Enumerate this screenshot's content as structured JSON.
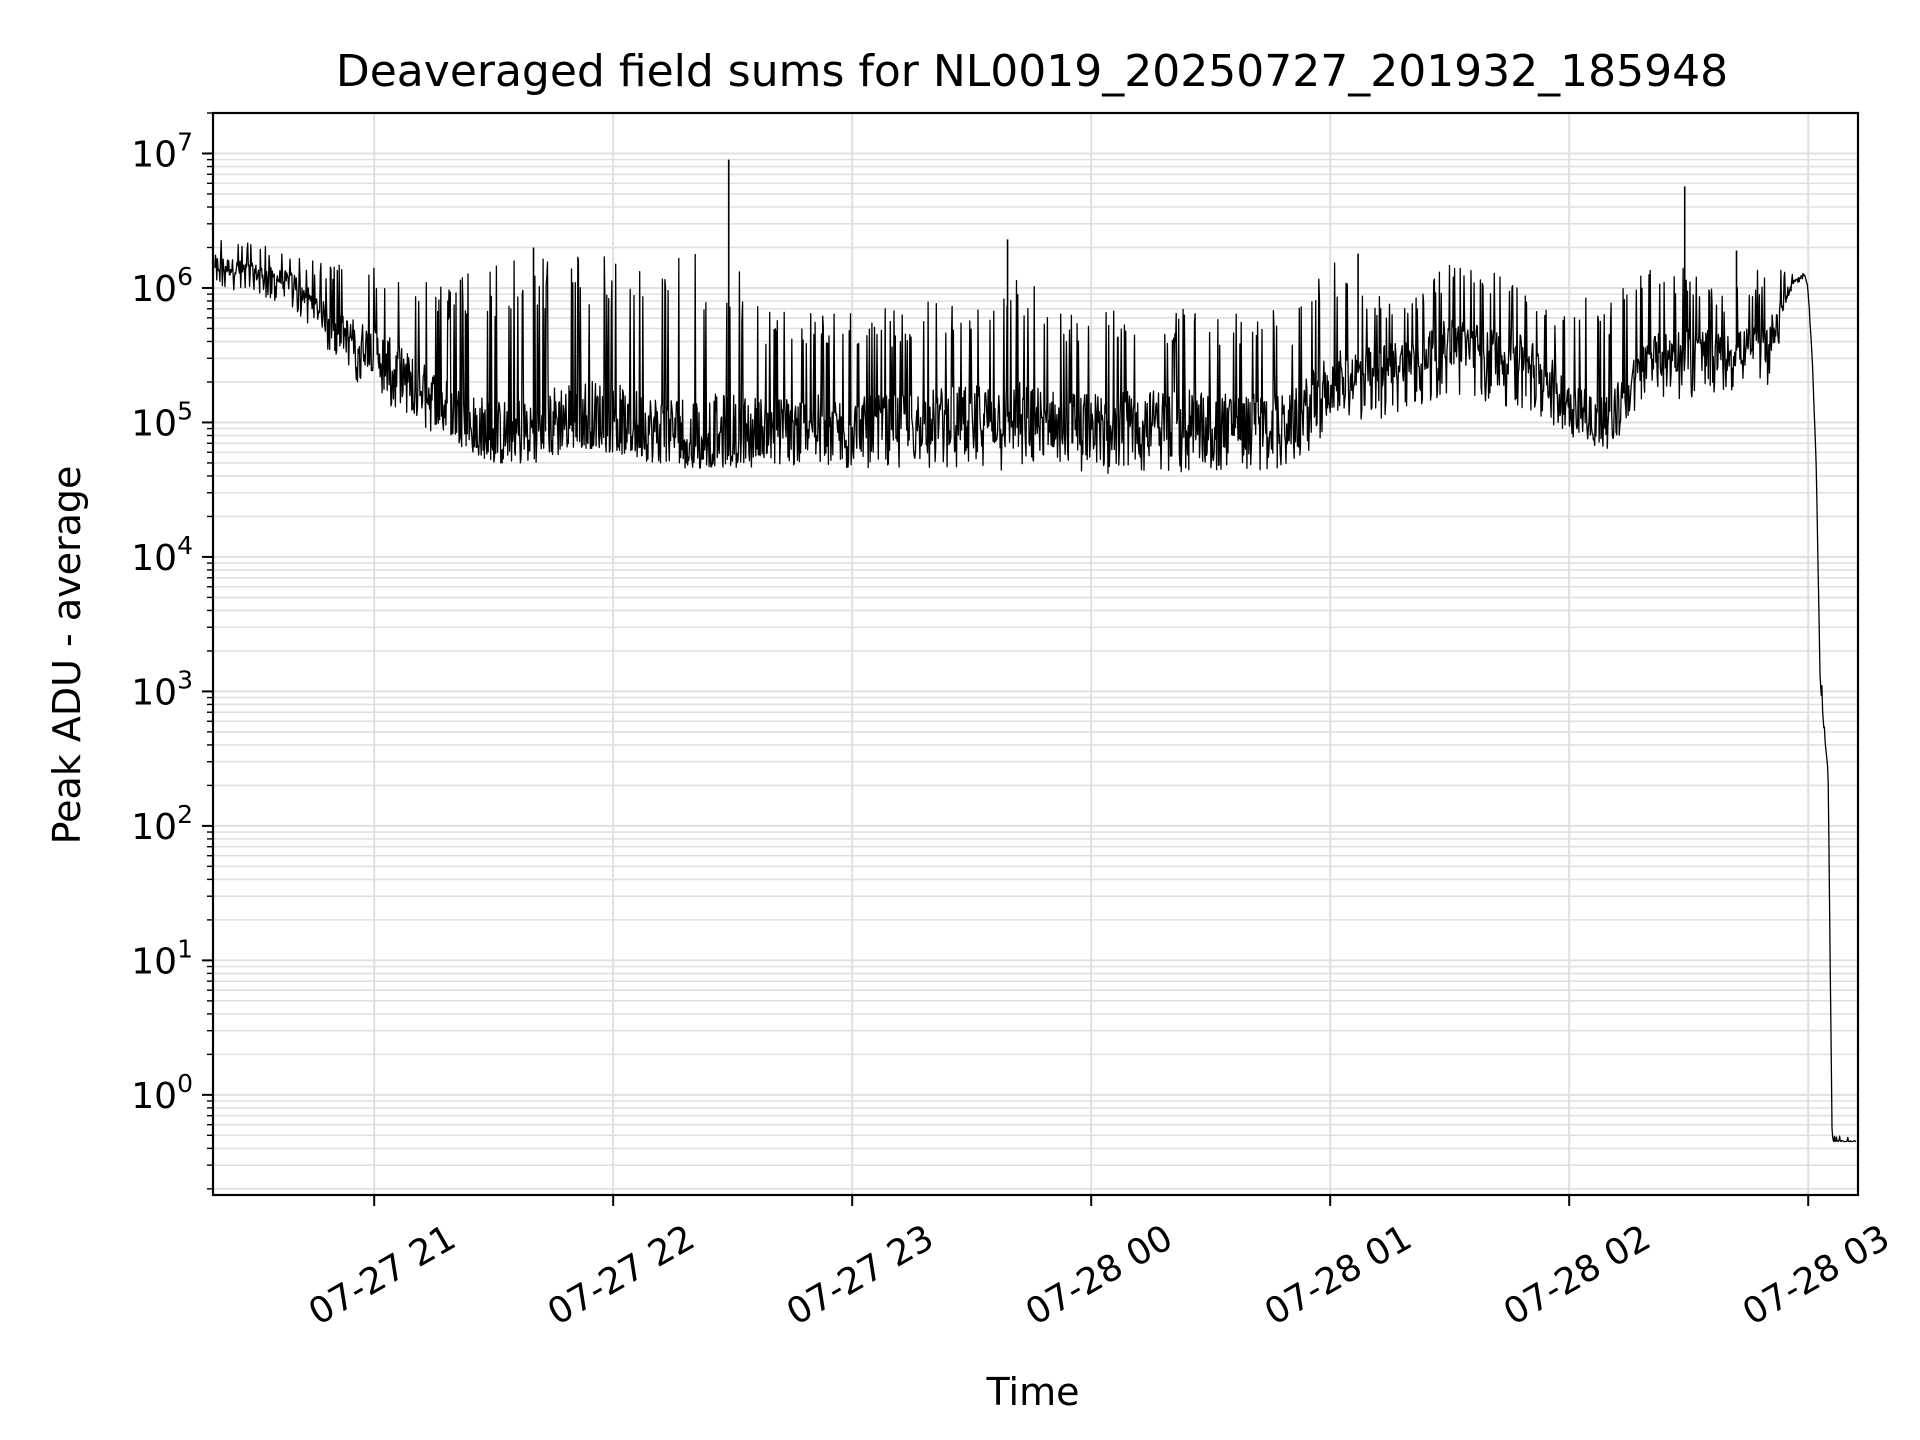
{
  "chart_data": {
    "type": "line",
    "title": "Deaveraged field sums for NL0019_20250727_201932_185948",
    "xlabel": "Time",
    "ylabel": "Peak ADU - average",
    "yscale": "log",
    "ylim": [
      0.18,
      20000000
    ],
    "xlim": [
      "2025-07-27 20:19:32",
      "2025-07-28 03:12:30"
    ],
    "grid": true,
    "line_color": "#000000",
    "grid_color": "#e0e0e0",
    "x_ticks": [
      {
        "t": "2025-07-27 21:00",
        "label": "07-27 21"
      },
      {
        "t": "2025-07-27 22:00",
        "label": "07-27 22"
      },
      {
        "t": "2025-07-27 23:00",
        "label": "07-27 23"
      },
      {
        "t": "2025-07-28 00:00",
        "label": "07-28 00"
      },
      {
        "t": "2025-07-28 01:00",
        "label": "07-28 01"
      },
      {
        "t": "2025-07-28 02:00",
        "label": "07-28 02"
      },
      {
        "t": "2025-07-28 03:00",
        "label": "07-28 03"
      }
    ],
    "y_ticks": [
      {
        "v": 1,
        "base": "10",
        "exp": "0"
      },
      {
        "v": 10,
        "base": "10",
        "exp": "1"
      },
      {
        "v": 100,
        "base": "10",
        "exp": "2"
      },
      {
        "v": 1000,
        "base": "10",
        "exp": "3"
      },
      {
        "v": 10000,
        "base": "10",
        "exp": "4"
      },
      {
        "v": 100000,
        "base": "10",
        "exp": "5"
      },
      {
        "v": 1000000,
        "base": "10",
        "exp": "6"
      },
      {
        "v": 10000000,
        "base": "10",
        "exp": "7"
      }
    ],
    "series": [
      {
        "x": [
          "2025-07-27 20:20",
          "2025-07-27 20:30",
          "2025-07-27 20:40",
          "2025-07-27 20:50",
          "2025-07-27 21:00",
          "2025-07-27 21:10",
          "2025-07-27 21:20",
          "2025-07-27 21:30",
          "2025-07-27 21:40",
          "2025-07-27 21:50",
          "2025-07-27 22:00",
          "2025-07-27 22:10",
          "2025-07-27 22:20",
          "2025-07-27 22:30",
          "2025-07-27 22:40",
          "2025-07-27 22:50",
          "2025-07-27 23:00",
          "2025-07-27 23:10",
          "2025-07-27 23:20",
          "2025-07-27 23:30",
          "2025-07-27 23:40",
          "2025-07-27 23:50",
          "2025-07-28 00:00",
          "2025-07-28 00:10",
          "2025-07-28 00:20",
          "2025-07-28 00:30",
          "2025-07-28 00:40",
          "2025-07-28 00:50",
          "2025-07-28 01:00",
          "2025-07-28 01:10",
          "2025-07-28 01:20",
          "2025-07-28 01:30",
          "2025-07-28 01:40",
          "2025-07-28 01:50",
          "2025-07-28 02:00",
          "2025-07-28 02:10",
          "2025-07-28 02:20",
          "2025-07-28 02:30",
          "2025-07-28 02:40",
          "2025-07-28 02:50",
          "2025-07-28 02:56",
          "2025-07-28 02:59",
          "2025-07-28 03:00",
          "2025-07-28 03:01",
          "2025-07-28 03:02",
          "2025-07-28 03:03",
          "2025-07-28 03:04",
          "2025-07-28 03:05",
          "2025-07-28 03:06",
          "2025-07-28 03:12"
        ],
        "y": [
          1500000,
          1300000,
          1100000,
          500000,
          350000,
          200000,
          120000,
          80000,
          90000,
          120000,
          110000,
          90000,
          85000,
          90000,
          95000,
          100000,
          95000,
          100000,
          110000,
          115000,
          110000,
          105000,
          100000,
          105000,
          110000,
          105000,
          100000,
          100000,
          200000,
          250000,
          300000,
          400000,
          350000,
          300000,
          150000,
          100000,
          300000,
          350000,
          330000,
          400000,
          1100000,
          1250000,
          1000000,
          300000,
          50000,
          1200,
          500,
          250,
          0.45,
          0.45
        ],
        "low": [
          1000000,
          900000,
          700000,
          300000,
          150000,
          100000,
          70000,
          50000,
          50000,
          60000,
          60000,
          50000,
          45000,
          45000,
          45000,
          45000,
          45000,
          45000,
          45000,
          45000,
          42000,
          42000,
          40000,
          42000,
          42000,
          42000,
          42000,
          45000,
          90000,
          100000,
          120000,
          150000,
          140000,
          120000,
          80000,
          60000,
          150000,
          150000,
          160000,
          180000,
          1000000,
          1200000,
          900000,
          300000,
          50000,
          1200,
          500,
          250,
          0.45,
          0.45
        ],
        "high": [
          2500000,
          2200000,
          1800000,
          1500000,
          1500000,
          1200000,
          1200000,
          1500000,
          1800000,
          1800000,
          1800000,
          1500000,
          1800000,
          1500000,
          700000,
          700000,
          700000,
          700000,
          800000,
          800000,
          1800000,
          800000,
          700000,
          700000,
          700000,
          700000,
          700000,
          700000,
          1700000,
          900000,
          900000,
          1500000,
          1500000,
          900000,
          800000,
          900000,
          1400000,
          1400000,
          900000,
          1600000,
          1300000,
          1300000,
          1000000,
          300000,
          50000,
          2000,
          600,
          250,
          0.5,
          0.5
        ],
        "spikes": [
          {
            "x": "2025-07-27 22:29",
            "y": 9000000
          },
          {
            "x": "2025-07-27 23:39",
            "y": 2300000
          },
          {
            "x": "2025-07-28 02:29",
            "y": 5700000
          },
          {
            "x": "2025-07-28 01:07",
            "y": 1800000
          },
          {
            "x": "2025-07-27 21:40",
            "y": 2000000
          },
          {
            "x": "2025-07-28 02:42",
            "y": 1900000
          }
        ]
      }
    ]
  }
}
